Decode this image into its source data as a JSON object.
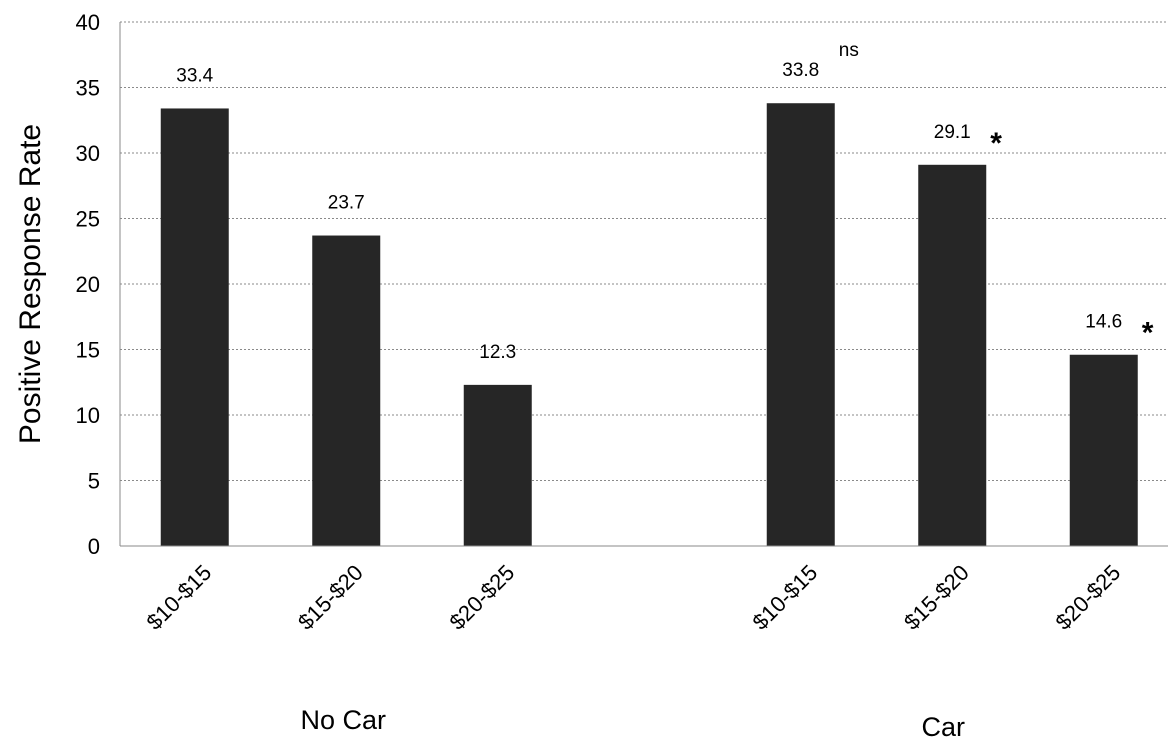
{
  "chart_data": {
    "type": "bar",
    "title": "",
    "ylabel": "Positive Response Rate",
    "xlabel": "",
    "ylim": [
      0,
      40
    ],
    "yticks": [
      0,
      5,
      10,
      15,
      20,
      25,
      30,
      35,
      40
    ],
    "grid": true,
    "legend": "none",
    "bar_color": "#262626",
    "groups": [
      {
        "label": "No Car",
        "categories": [
          "$10-$15",
          "$15-$20",
          "$20-$25"
        ],
        "values": [
          33.4,
          23.7,
          12.3
        ],
        "value_labels": [
          "33.4",
          "23.7",
          "12.3"
        ],
        "annotations": [
          "",
          "",
          ""
        ]
      },
      {
        "label": "Car",
        "categories": [
          "$10-$15",
          "$15-$20",
          "$20-$25"
        ],
        "values": [
          33.8,
          29.1,
          14.6
        ],
        "value_labels": [
          "33.8",
          "29.1",
          "14.6"
        ],
        "annotations": [
          "ns",
          "*",
          "*"
        ]
      }
    ]
  }
}
